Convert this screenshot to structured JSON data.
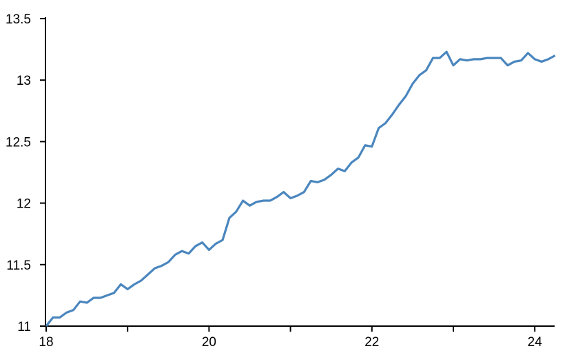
{
  "chart_data": {
    "type": "line",
    "title": "",
    "xlabel": "",
    "ylabel": "",
    "xlim": [
      18,
      24.25
    ],
    "ylim": [
      11,
      13.5
    ],
    "x_ticks": [
      18,
      19,
      20,
      21,
      22,
      23,
      24
    ],
    "x_tick_labels": [
      "18",
      "",
      "20",
      "",
      "22",
      "",
      "24"
    ],
    "y_ticks": [
      11,
      11.5,
      12,
      12.5,
      13,
      13.5
    ],
    "y_tick_labels": [
      "11",
      "11.5",
      "12",
      "12.5",
      "13",
      "13.5"
    ],
    "grid": false,
    "line_color": "#4a86be",
    "series": [
      {
        "x_start": 18,
        "x_step": 0.08333,
        "values": [
          11.0,
          11.07,
          11.07,
          11.11,
          11.13,
          11.2,
          11.19,
          11.23,
          11.23,
          11.25,
          11.27,
          11.34,
          11.3,
          11.34,
          11.37,
          11.42,
          11.47,
          11.49,
          11.52,
          11.58,
          11.61,
          11.59,
          11.65,
          11.68,
          11.62,
          11.67,
          11.7,
          11.88,
          11.93,
          12.02,
          11.98,
          12.01,
          12.02,
          12.02,
          12.05,
          12.09,
          12.04,
          12.06,
          12.09,
          12.18,
          12.17,
          12.19,
          12.23,
          12.28,
          12.26,
          12.33,
          12.37,
          12.47,
          12.46,
          12.61,
          12.65,
          12.72,
          12.8,
          12.87,
          12.97,
          13.04,
          13.08,
          13.18,
          13.18,
          13.23,
          13.12,
          13.17,
          13.16,
          13.17,
          13.17,
          13.18,
          13.18,
          13.18,
          13.12,
          13.15,
          13.16,
          13.22,
          13.17,
          13.15,
          13.17,
          13.2
        ]
      }
    ]
  }
}
